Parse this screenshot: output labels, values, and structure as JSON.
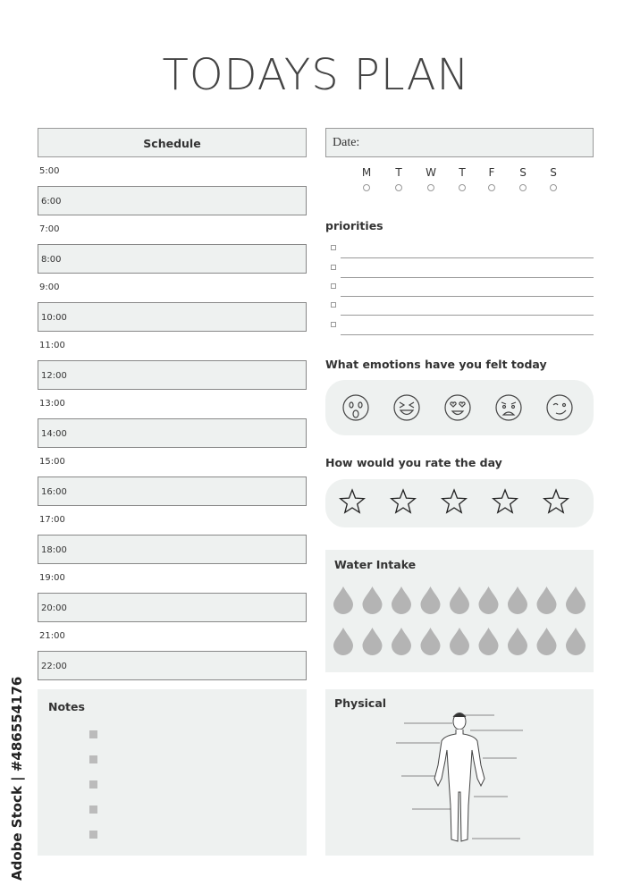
{
  "title": "TODAYS PLAN",
  "schedule": {
    "header": "Schedule",
    "times": [
      "5:00",
      "7:00",
      "9:00",
      "11:00",
      "13:00",
      "15:00",
      "17:00",
      "19:00",
      "21:00"
    ],
    "slots": [
      "6:00",
      "8:00",
      "10:00",
      "12:00",
      "14:00",
      "16:00",
      "18:00",
      "20:00",
      "22:00"
    ]
  },
  "date_label": "Date:",
  "days": [
    "M",
    "T",
    "W",
    "T",
    "F",
    "S",
    "S"
  ],
  "priorities": {
    "heading": "priorities",
    "count": 5
  },
  "emotions": {
    "heading": "What emotions have you felt today",
    "icons": [
      "surprised-face-icon",
      "laughing-face-icon",
      "heart-eyes-face-icon",
      "sad-face-icon",
      "winking-face-icon"
    ]
  },
  "rating": {
    "heading": "How would you rate the day",
    "stars": 5
  },
  "water": {
    "heading": "Water Intake",
    "drops": 18
  },
  "notes": {
    "heading": "Notes",
    "bullets": 5
  },
  "physical": {
    "heading": "Physical"
  },
  "watermark": "Adobe Stock | #486554176",
  "colors": {
    "panel": "#eef1f0",
    "drop": "#b4b4b4"
  }
}
